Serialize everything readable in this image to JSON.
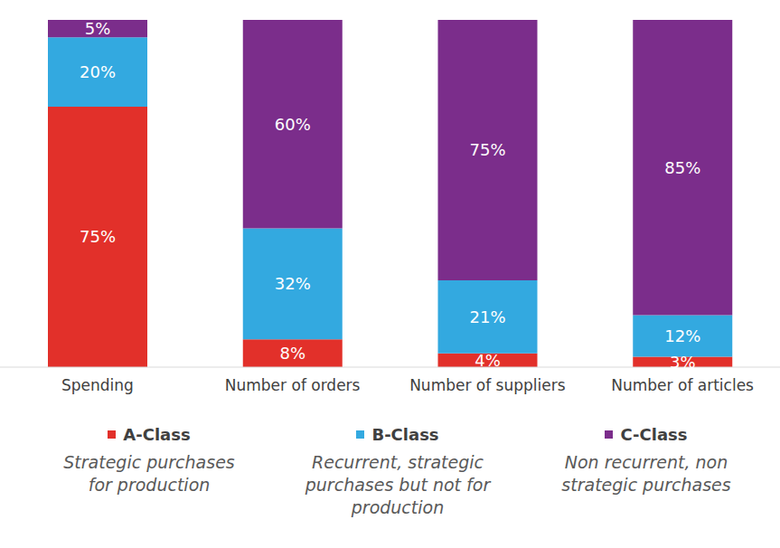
{
  "chart_data": {
    "type": "bar",
    "stacked": true,
    "data_labels": true,
    "tick_labels": "x",
    "grid": false,
    "ylim": [
      0,
      100
    ],
    "categories": [
      "Spending",
      "Number of orders",
      "Number of suppliers",
      "Number of articles"
    ],
    "series": [
      {
        "name": "A-Class",
        "description": "Strategic purchases for production",
        "color": "#e2302a",
        "values": [
          75,
          8,
          4,
          3
        ],
        "value_labels": [
          "75%",
          "8%",
          "4%",
          "3%"
        ]
      },
      {
        "name": "B-Class",
        "description": "Recurrent, strategic purchases but not for production",
        "color": "#33a9e0",
        "values": [
          20,
          32,
          21,
          12
        ],
        "value_labels": [
          "20%",
          "32%",
          "21%",
          "12%"
        ]
      },
      {
        "name": "C-Class",
        "description": "Non recurrent, non strategic purchases",
        "color": "#7b2d8b",
        "values": [
          5,
          60,
          75,
          85
        ],
        "value_labels": [
          "5%",
          "60%",
          "75%",
          "85%"
        ]
      }
    ]
  }
}
